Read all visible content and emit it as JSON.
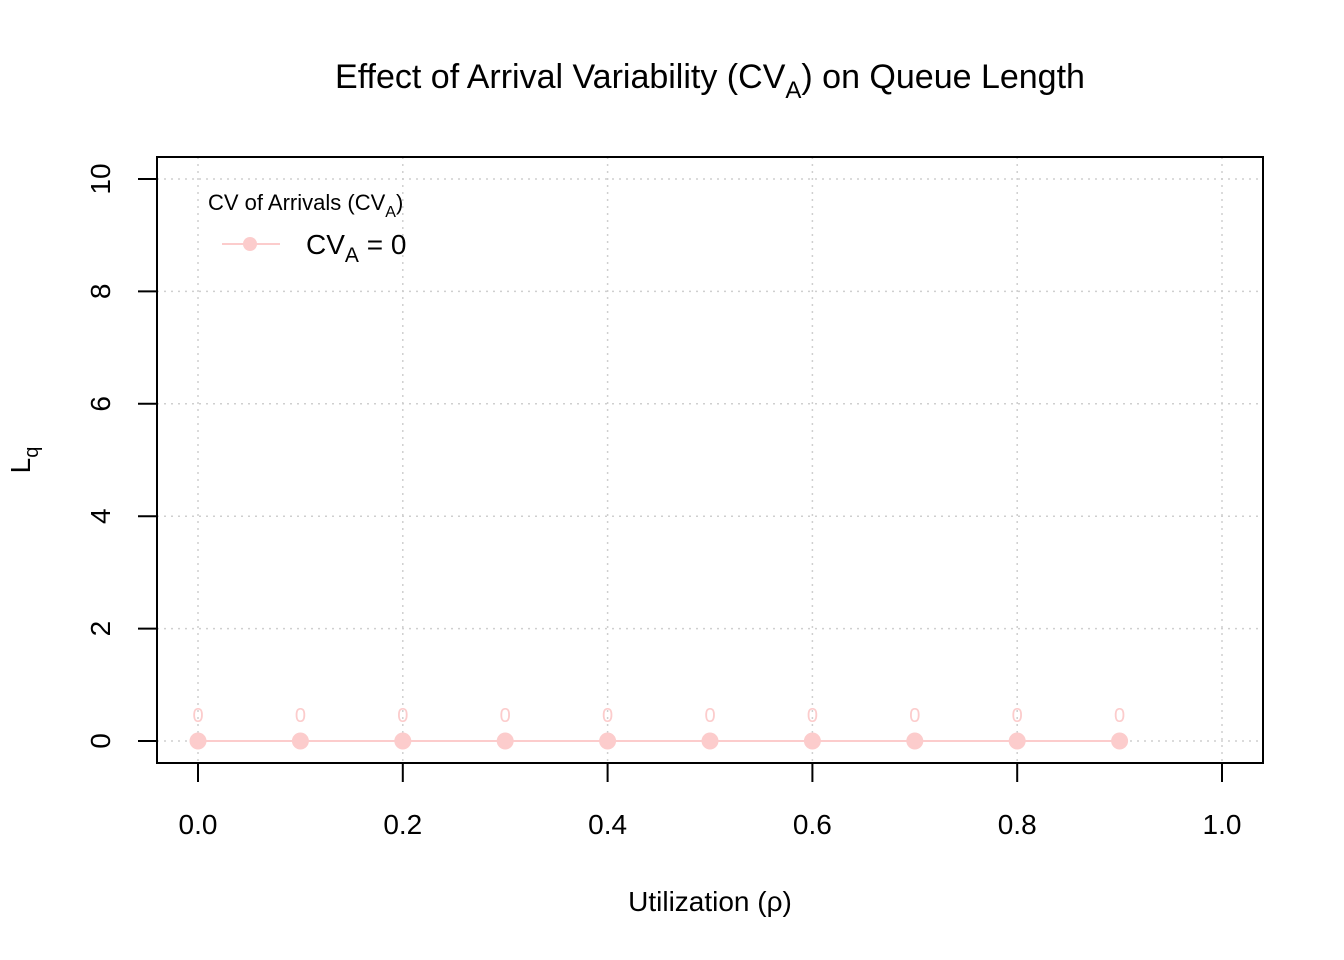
{
  "chart_data": {
    "type": "line",
    "title": {
      "main": "Effect of Arrival Variability (CV",
      "sub": "A",
      "end": ") on Queue Length"
    },
    "xlabel": "Utilization (ρ)",
    "ylabel": {
      "main": "L",
      "sub": "q"
    },
    "xlim": [
      0,
      1
    ],
    "ylim": [
      0,
      10
    ],
    "x_ticks": [
      "0.0",
      "0.2",
      "0.4",
      "0.6",
      "0.8",
      "1.0"
    ],
    "y_ticks": [
      "0",
      "2",
      "4",
      "6",
      "8",
      "10"
    ],
    "grid": true,
    "legend": {
      "position": "top-left",
      "title": {
        "main": "CV of Arrivals (CV",
        "sub": "A",
        "end": ")"
      },
      "entries": [
        {
          "main": "CV",
          "sub": "A",
          "end": " = 0"
        }
      ]
    },
    "series": [
      {
        "color": "#fccccc",
        "x": [
          0.0,
          0.1,
          0.2,
          0.3,
          0.4,
          0.5,
          0.6,
          0.7,
          0.8,
          0.9
        ],
        "y": [
          0,
          0,
          0,
          0,
          0,
          0,
          0,
          0,
          0,
          0
        ],
        "labels": [
          "0",
          "0",
          "0",
          "0",
          "0",
          "0",
          "0",
          "0",
          "0",
          "0"
        ]
      }
    ]
  }
}
